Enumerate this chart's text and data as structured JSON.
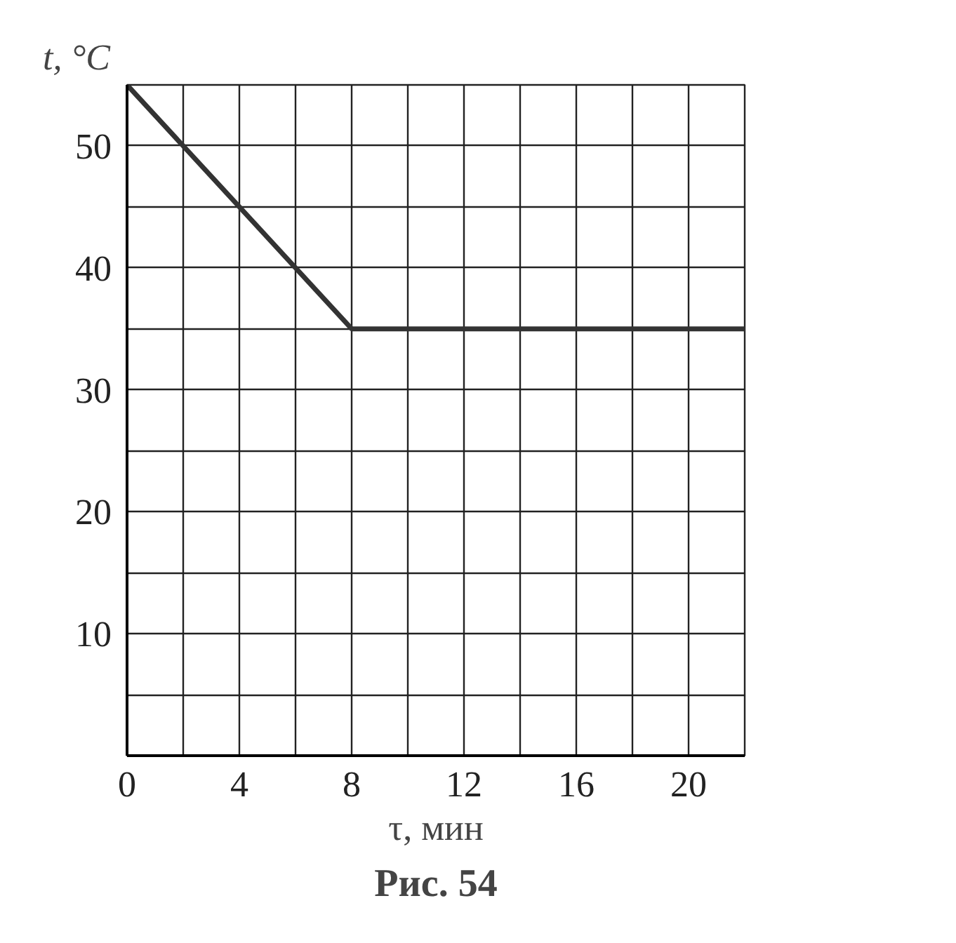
{
  "chart_data": {
    "type": "line",
    "x": [
      0,
      8,
      22
    ],
    "values": [
      55,
      35,
      35
    ],
    "color": "#333333",
    "xlabel": "τ, мин",
    "ylabel": "t, °C",
    "annotations": [
      "Рис. 54"
    ],
    "xlim": [
      0,
      22
    ],
    "ylim": [
      0,
      55
    ],
    "xticks": [
      0,
      {
        "value": 2,
        "label": null
      },
      4,
      {
        "value": 6,
        "label": null
      },
      8,
      {
        "value": 10,
        "label": null
      },
      12,
      {
        "value": 14,
        "label": null
      },
      16,
      {
        "value": 18,
        "label": null
      },
      20
    ],
    "yticks": [
      {
        "value": 0,
        "label": null
      },
      {
        "value": 5,
        "label": null
      },
      10,
      {
        "value": 15,
        "label": null
      },
      20,
      {
        "value": 25,
        "label": null
      },
      30,
      {
        "value": 35,
        "label": null
      },
      40,
      {
        "value": 45,
        "label": null
      },
      50
    ],
    "grid": true,
    "marker": "none",
    "line_style": "solid"
  }
}
